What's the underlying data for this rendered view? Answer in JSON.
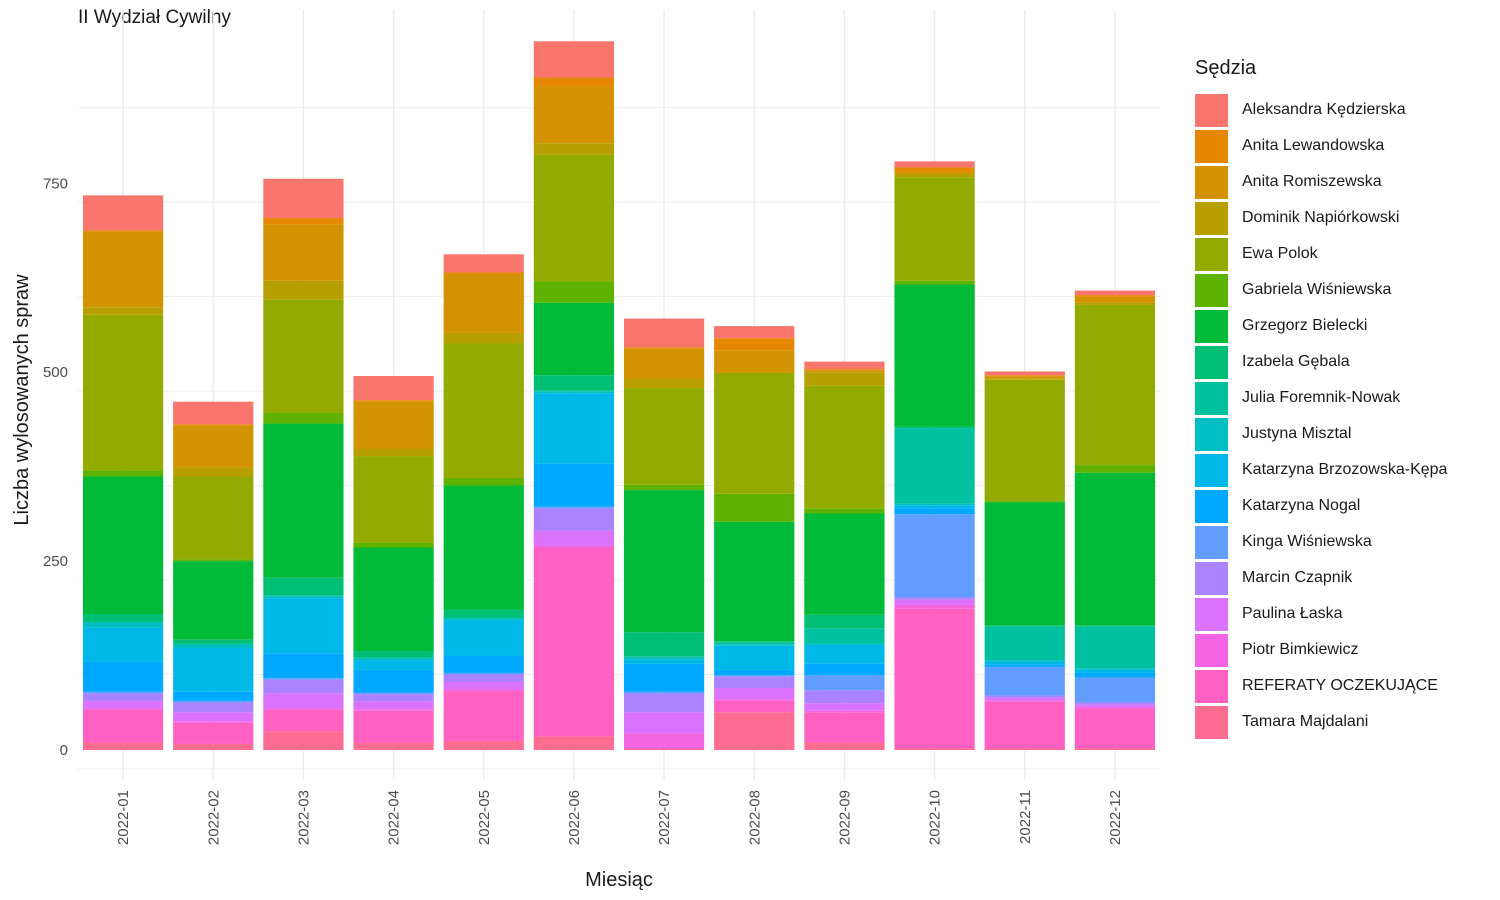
{
  "chart_data": {
    "type": "bar",
    "stacked": true,
    "title": "II Wydział Cywilny",
    "xlabel": "Miesiąc",
    "ylabel": "Liczba wylosowanych spraw",
    "ylim": [
      0,
      940
    ],
    "yticks": [
      0,
      250,
      500,
      750
    ],
    "grid": true,
    "legend_title": "Sędzia",
    "legend_position": "right",
    "categories": [
      "2022-01",
      "2022-02",
      "2022-03",
      "2022-04",
      "2022-05",
      "2022-06",
      "2022-07",
      "2022-08",
      "2022-09",
      "2022-10",
      "2022-11",
      "2022-12"
    ],
    "series": [
      {
        "name": "Aleksandra Kędzierska",
        "color": "#F8766D",
        "values": [
          46,
          30,
          52,
          32,
          24,
          48,
          38,
          16,
          10,
          8,
          5,
          6
        ]
      },
      {
        "name": "Anita Lewandowska",
        "color": "#E58700",
        "values": [
          2,
          2,
          8,
          2,
          2,
          12,
          2,
          16,
          2,
          6,
          2,
          2
        ]
      },
      {
        "name": "Anita Romiszewska",
        "color": "#D39200",
        "values": [
          100,
          55,
          75,
          62,
          78,
          75,
          40,
          30,
          2,
          2,
          2,
          8
        ]
      },
      {
        "name": "Dominik Napiórkowski",
        "color": "#B79F00",
        "values": [
          10,
          12,
          25,
          10,
          14,
          15,
          12,
          0,
          18,
          5,
          2,
          3
        ]
      },
      {
        "name": "Ewa Polok",
        "color": "#93AA00",
        "values": [
          206,
          110,
          150,
          115,
          178,
          168,
          128,
          160,
          162,
          137,
          160,
          212
        ]
      },
      {
        "name": "Gabriela Wiśniewska",
        "color": "#5EB300",
        "values": [
          8,
          2,
          14,
          6,
          10,
          28,
          7,
          37,
          7,
          5,
          2,
          10
        ]
      },
      {
        "name": "Grzegorz Bielecki",
        "color": "#00BA38",
        "values": [
          182,
          104,
          204,
          137,
          164,
          96,
          188,
          158,
          134,
          188,
          163,
          202
        ]
      },
      {
        "name": "Izabela Gębala",
        "color": "#00BF74",
        "values": [
          10,
          5,
          23,
          8,
          10,
          20,
          32,
          2,
          18,
          2,
          2,
          2
        ]
      },
      {
        "name": "Julia Foremnik-Nowak",
        "color": "#00C19F",
        "values": [
          2,
          2,
          2,
          2,
          2,
          2,
          2,
          2,
          20,
          100,
          44,
          55
        ]
      },
      {
        "name": "Justyna Misztal",
        "color": "#00BFC4",
        "values": [
          6,
          4,
          2,
          2,
          2,
          2,
          2,
          2,
          2,
          2,
          2,
          2
        ]
      },
      {
        "name": "Katarzyna Brzozowska-Kępa",
        "color": "#00B8E7",
        "values": [
          45,
          58,
          73,
          13,
          47,
          93,
          6,
          32,
          25,
          4,
          4,
          4
        ]
      },
      {
        "name": "Katarzyna Nogal",
        "color": "#00A9FF",
        "values": [
          40,
          12,
          33,
          30,
          23,
          57,
          37,
          7,
          15,
          8,
          3,
          6
        ]
      },
      {
        "name": "Kinga Wiśniewska",
        "color": "#619CFF",
        "values": [
          2,
          2,
          2,
          2,
          2,
          2,
          2,
          2,
          20,
          110,
          38,
          33
        ]
      },
      {
        "name": "Marcin Czapnik",
        "color": "#AB82FF",
        "values": [
          10,
          13,
          18,
          10,
          10,
          30,
          25,
          15,
          17,
          3,
          3,
          3
        ]
      },
      {
        "name": "Paulina Łaska",
        "color": "#DB72FB",
        "values": [
          10,
          12,
          20,
          10,
          10,
          20,
          28,
          15,
          10,
          7,
          3,
          3
        ]
      },
      {
        "name": "Piotr Bimkiewicz",
        "color": "#F564E3",
        "values": [
          2,
          2,
          2,
          2,
          2,
          2,
          20,
          2,
          2,
          5,
          2,
          2
        ]
      },
      {
        "name": "REFERATY OCZEKUJĄCE",
        "color": "#FF61C3",
        "values": [
          43,
          28,
          28,
          42,
          66,
          250,
          0,
          15,
          40,
          185,
          62,
          53
        ]
      },
      {
        "name": "Tamara Majdalani",
        "color": "#FF6C91",
        "values": [
          10,
          8,
          25,
          10,
          12,
          18,
          2,
          50,
          10,
          2,
          2,
          2
        ]
      }
    ]
  }
}
